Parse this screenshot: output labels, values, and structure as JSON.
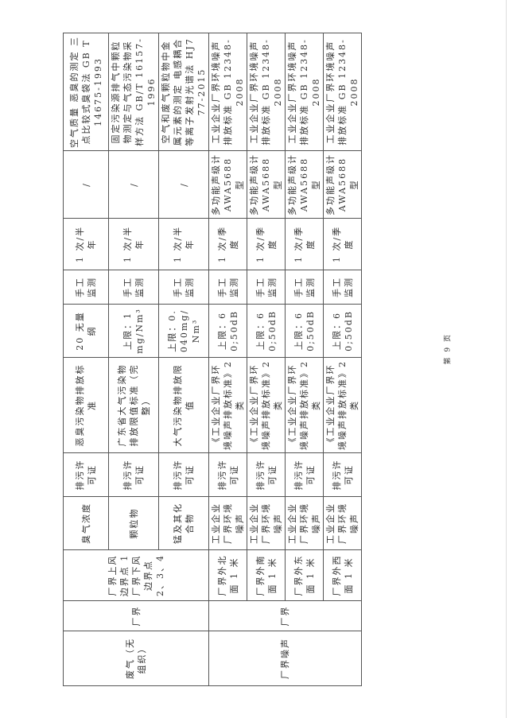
{
  "page_number": "第 9 页",
  "groups": {
    "gas": {
      "category": "废气（无组织）",
      "location": "厂界",
      "points": "厂界上风边界点 1 厂界下风边界点 2、3、4"
    },
    "noise": {
      "category": "厂界噪声",
      "location": "厂界"
    }
  },
  "rows": [
    {
      "item": "臭气浓度",
      "source": "排污许可证",
      "standard": "恶臭污染物排放标准",
      "limit": "20 无量纲",
      "mode": "手工监测",
      "frequency": "1 次/半年",
      "instrument": "/",
      "method": "空气质量 恶臭的测定 三点比较式臭袋法 GB T 14675-1993"
    },
    {
      "item": "颗粒物",
      "source": "排污许可证",
      "standard": "广东省大气污染物排放限值标准（完整）",
      "limit": "上限：1mg/Nm³",
      "mode": "手工监测",
      "frequency": "1 次/半年",
      "instrument": "/",
      "method": "固定污染源排气中颗粒物测定与气态污染物采样方法 GB/T 16157-1996"
    },
    {
      "item": "锰及其化合物",
      "source": "排污许可证",
      "standard": "大气污染物排放限值",
      "limit": "上限：0.040mg/Nm³",
      "mode": "手工监测",
      "frequency": "1 次/半年",
      "instrument": "/",
      "method": "空气和废气颗粒物中金属元素的测定 电感耦合等离子发射光谱法 HJ777-2015"
    },
    {
      "point": "厂界外北面 1 米",
      "item": "工业企业厂界环境噪声",
      "source": "排污许可证",
      "standard": "《工业企业厂界环境噪声排放标准》2 类",
      "limit": "上限：60;50dB",
      "mode": "手工监测",
      "frequency": "1 次/季度",
      "instrument": "多功能声级计 AWA5688 型",
      "method": "工业企业厂界环境噪声排放标准 GB 12348-2008"
    },
    {
      "point": "厂界外南面 1 米",
      "item": "工业企业厂界环境噪声",
      "source": "排污许可证",
      "standard": "《工业企业厂界环境噪声排放标准》2 类",
      "limit": "上限：60;50dB",
      "mode": "手工监测",
      "frequency": "1 次/季度",
      "instrument": "多功能声级计 AWA5688 型",
      "method": "工业企业厂界环境噪声排放标准 GB 12348-2008"
    },
    {
      "point": "厂界外东面 1 米",
      "item": "工业企业厂界环境噪声",
      "source": "排污许可证",
      "standard": "《工业企业厂界环境噪声排放标准》2 类",
      "limit": "上限：60;50dB",
      "mode": "手工监测",
      "frequency": "1 次/季度",
      "instrument": "多功能声级计 AWA5688 型",
      "method": "工业企业厂界环境噪声排放标准 GB 12348-2008"
    },
    {
      "point": "厂界外西面 1 米",
      "item": "工业企业厂界环境噪声",
      "source": "排污许可证",
      "standard": "《工业企业厂界环境噪声排放标准》2 类",
      "limit": "上限：60;50dB",
      "mode": "手工监测",
      "frequency": "1 次/季度",
      "instrument": "多功能声级计 AWA5688 型",
      "method": "工业企业厂界环境噪声排放标准 GB 12348-2008"
    }
  ]
}
